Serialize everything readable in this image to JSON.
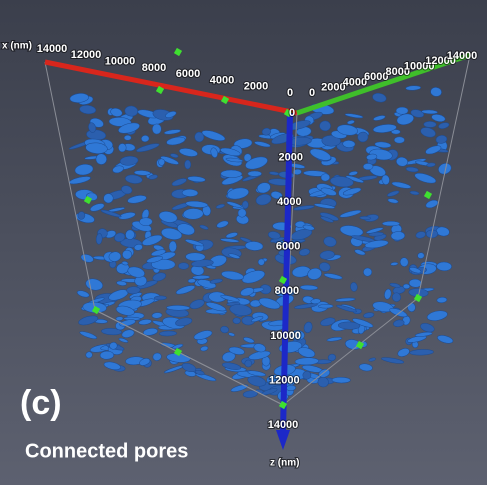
{
  "panel_label": "(c)",
  "caption": "Connected pores",
  "axes": {
    "x": {
      "label": "x (nm)",
      "ticks": [
        14000,
        12000,
        10000,
        8000,
        6000,
        4000,
        2000,
        0
      ]
    },
    "y": {
      "ticks": [
        0,
        2000,
        4000,
        6000,
        8000,
        10000,
        12000,
        14000
      ]
    },
    "z": {
      "label": "z (nm)",
      "ticks": [
        0,
        2000,
        4000,
        6000,
        8000,
        10000,
        12000,
        14000
      ]
    }
  }
}
